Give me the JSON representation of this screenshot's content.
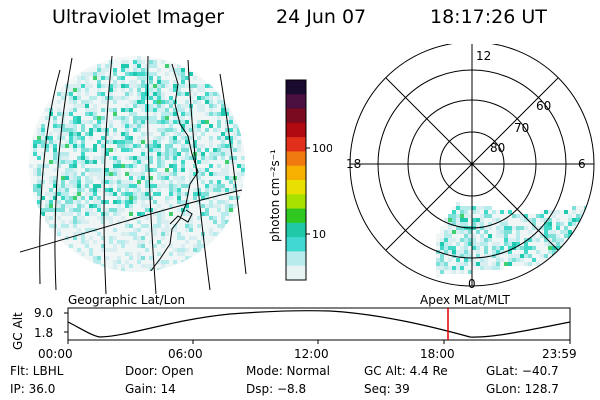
{
  "header": {
    "instrument": "Ultraviolet Imager",
    "date": "24 Jun 07",
    "time": "18:17:26 UT"
  },
  "geo_panel": {
    "label": "Geographic Lat/Lon"
  },
  "polar_panel": {
    "label": "Apex MLat/MLT",
    "mlt_labels": {
      "top": "12",
      "left": "18",
      "right": "6",
      "bottom": "0"
    },
    "lat_rings": [
      "60",
      "70",
      "80"
    ]
  },
  "colorbar": {
    "unit_label": "photon cm⁻²s⁻¹",
    "ticks": [
      "100",
      "10"
    ],
    "colors": [
      "#1a0a2e",
      "#4b1040",
      "#7a0a20",
      "#b00a10",
      "#e0301a",
      "#f07a10",
      "#f5b000",
      "#e8e000",
      "#a8e000",
      "#30c820",
      "#20c8a8",
      "#40d8d0",
      "#b8ecec",
      "#e8f4f4"
    ]
  },
  "altitude_plot": {
    "ylabel": "GC Alt",
    "yticks": [
      "9.0",
      "1.8"
    ],
    "xticks": [
      "00:00",
      "06:00",
      "12:00",
      "18:00",
      "23:59"
    ],
    "marker_color": "#e00000"
  },
  "info": {
    "row1": {
      "flt": "Flt: LBHL",
      "door": "Door: Open",
      "mode": "Mode: Normal",
      "gcalt": "GC Alt: 4.4 Re",
      "glat": "GLat: −40.7"
    },
    "row2": {
      "ip": "IP: 36.0",
      "gain": "Gain: 14",
      "dsp": "Dsp:   −8.8",
      "seq": "Seq: 39",
      "glon": "GLon: 128.7"
    }
  }
}
